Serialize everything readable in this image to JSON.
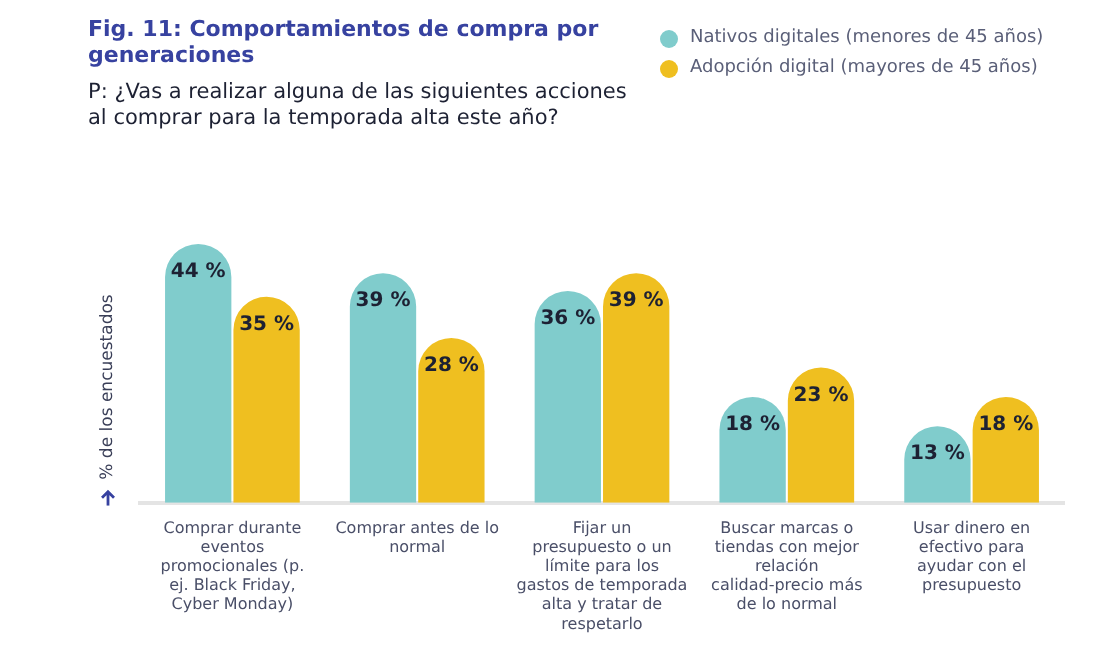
{
  "chart_data": {
    "type": "bar",
    "title": "Fig. 11: Comportamientos de compra por generaciones",
    "subtitle": "P: ¿Vas a realizar alguna de las siguientes acciones al comprar para la temporada alta este año?",
    "ylabel": "% de los encuestados",
    "legend": "top right",
    "grid": false,
    "categories": [
      "Comprar durante eventos promocionales (p. ej. Black Friday, Cyber Monday)",
      "Comprar antes de lo normal",
      "Fijar un presupuesto o un límite para los gastos de temporada alta y tratar de respetarlo",
      "Buscar marcas o tiendas con mejor relación calidad-precio más de lo normal",
      "Usar dinero en efectivo para ayudar con el presupuesto"
    ],
    "series": [
      {
        "name": "Nativos digitales (menores de 45 años)",
        "color": "#80cccc",
        "values": [
          44,
          39,
          36,
          18,
          13
        ],
        "value_labels": [
          "44 %",
          "39 %",
          "36 %",
          "18 %",
          "13 %"
        ]
      },
      {
        "name": "Adopción digital (mayores de 45 años)",
        "color": "#efbf20",
        "values": [
          35,
          28,
          39,
          23,
          18
        ],
        "value_labels": [
          "35 %",
          "28 %",
          "39 %",
          "23 %",
          "18 %"
        ]
      }
    ]
  }
}
